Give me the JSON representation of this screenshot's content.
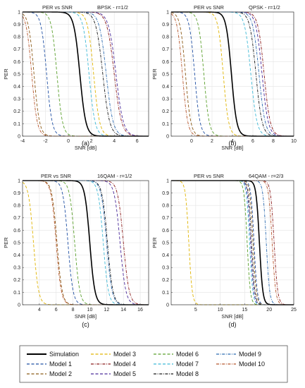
{
  "panels": [
    {
      "title": "PER vs SNR",
      "mode": "BPSK - r=1/2",
      "xlabel": "SNR [dB]",
      "ylabel": "PER",
      "caption": "(a)",
      "xlim": [
        -4,
        7
      ],
      "xticks": [
        -4,
        -2,
        0,
        2,
        4,
        6
      ],
      "curves": [
        {
          "series": "Simulation",
          "mid": 1.0,
          "w": 0.26
        },
        {
          "series": "Model 1",
          "mid": -1.9,
          "w": 0.24
        },
        {
          "series": "Model 2",
          "mid": -3.0,
          "w": 0.24
        },
        {
          "series": "Model 3",
          "mid": 2.2,
          "w": 0.26
        },
        {
          "series": "Model 4",
          "mid": 4.0,
          "w": 0.32
        },
        {
          "series": "Model 5",
          "mid": 4.15,
          "w": 0.32
        },
        {
          "series": "Model 6",
          "mid": -1.0,
          "w": 0.24
        },
        {
          "series": "Model 7",
          "mid": 1.8,
          "w": 0.26
        },
        {
          "series": "Model 8",
          "mid": 3.0,
          "w": 0.3
        },
        {
          "series": "Model 9",
          "mid": 3.3,
          "w": 0.3
        },
        {
          "series": "Model 10",
          "mid": -3.2,
          "w": 0.24
        }
      ]
    },
    {
      "title": "PER vs SNR",
      "mode": "QPSK - r=1/2",
      "xlabel": "SNR [dB]",
      "ylabel": "PER",
      "caption": "(b)",
      "xlim": [
        -2,
        10
      ],
      "xticks": [
        0,
        2,
        4,
        6,
        8,
        10
      ],
      "curves": [
        {
          "series": "Simulation",
          "mid": 3.9,
          "w": 0.26
        },
        {
          "series": "Model 1",
          "mid": 0.3,
          "w": 0.26
        },
        {
          "series": "Model 2",
          "mid": -0.6,
          "w": 0.26
        },
        {
          "series": "Model 3",
          "mid": 3.1,
          "w": 0.26
        },
        {
          "series": "Model 4",
          "mid": 7.1,
          "w": 0.3
        },
        {
          "series": "Model 5",
          "mid": 6.9,
          "w": 0.3
        },
        {
          "series": "Model 6",
          "mid": 1.2,
          "w": 0.26
        },
        {
          "series": "Model 7",
          "mid": 5.8,
          "w": 0.3
        },
        {
          "series": "Model 8",
          "mid": 6.3,
          "w": 0.3
        },
        {
          "series": "Model 9",
          "mid": 6.6,
          "w": 0.3
        },
        {
          "series": "Model 10",
          "mid": -0.9,
          "w": 0.26
        }
      ]
    },
    {
      "title": "PER vs SNR",
      "mode": "16QAM - r=1/2",
      "xlabel": "SNR [dB]",
      "ylabel": "PER",
      "caption": "(c)",
      "xlim": [
        2,
        17
      ],
      "xticks": [
        4,
        6,
        8,
        10,
        12,
        14,
        16
      ],
      "curves": [
        {
          "series": "Simulation",
          "mid": 10.0,
          "w": 0.3
        },
        {
          "series": "Model 1",
          "mid": 7.4,
          "w": 0.3
        },
        {
          "series": "Model 2",
          "mid": 6.1,
          "w": 0.3
        },
        {
          "series": "Model 3",
          "mid": 3.3,
          "w": 0.3
        },
        {
          "series": "Model 4",
          "mid": 14.0,
          "w": 0.34
        },
        {
          "series": "Model 5",
          "mid": 13.6,
          "w": 0.34
        },
        {
          "series": "Model 6",
          "mid": 8.2,
          "w": 0.3
        },
        {
          "series": "Model 7",
          "mid": 11.6,
          "w": 0.3
        },
        {
          "series": "Model 8",
          "mid": 12.1,
          "w": 0.32
        },
        {
          "series": "Model 9",
          "mid": 12.0,
          "w": 0.32
        },
        {
          "series": "Model 10",
          "mid": 6.0,
          "w": 0.3
        }
      ]
    },
    {
      "title": "PER vs SNR",
      "mode": "64QAM - r=2/3",
      "xlabel": "SNR [dB]",
      "ylabel": "PER",
      "caption": "(d)",
      "xlim": [
        0,
        25
      ],
      "xticks": [
        5,
        10,
        15,
        20,
        25
      ],
      "curves": [
        {
          "series": "Simulation",
          "mid": 18.0,
          "w": 0.34
        },
        {
          "series": "Model 1",
          "mid": 16.9,
          "w": 0.32
        },
        {
          "series": "Model 2",
          "mid": 16.7,
          "w": 0.32
        },
        {
          "series": "Model 3",
          "mid": 3.6,
          "w": 0.34
        },
        {
          "series": "Model 4",
          "mid": 21.0,
          "w": 0.36
        },
        {
          "series": "Model 5",
          "mid": 16.2,
          "w": 0.32
        },
        {
          "series": "Model 6",
          "mid": 15.5,
          "w": 0.32
        },
        {
          "series": "Model 7",
          "mid": 16.0,
          "w": 0.32
        },
        {
          "series": "Model 8",
          "mid": 16.4,
          "w": 0.32
        },
        {
          "series": "Model 9",
          "mid": 19.4,
          "w": 0.34
        },
        {
          "series": "Model 10",
          "mid": 20.6,
          "w": 0.36
        }
      ]
    }
  ],
  "series_styles": [
    {
      "name": "Simulation",
      "color": "#000000",
      "dash": "solid",
      "bold": true
    },
    {
      "name": "Model 1",
      "color": "#1f4fa3",
      "dash": "dash"
    },
    {
      "name": "Model 2",
      "color": "#8b5a16",
      "dash": "dash"
    },
    {
      "name": "Model 3",
      "color": "#e0b400",
      "dash": "dash"
    },
    {
      "name": "Model 4",
      "color": "#8b1a1a",
      "dash": "dashdot"
    },
    {
      "name": "Model 5",
      "color": "#4a2a9a",
      "dash": "dash"
    },
    {
      "name": "Model 6",
      "color": "#5aa02c",
      "dash": "dash"
    },
    {
      "name": "Model 7",
      "color": "#3fb9d6",
      "dash": "dash"
    },
    {
      "name": "Model 8",
      "color": "#1a1a1a",
      "dash": "dashdot"
    },
    {
      "name": "Model 9",
      "color": "#2a6ab0",
      "dash": "dashdot"
    },
    {
      "name": "Model 10",
      "color": "#b5532a",
      "dash": "dashdot"
    }
  ],
  "legend_order": [
    "Simulation",
    "Model 1",
    "Model 2",
    "Model 3",
    "Model 4",
    "Model 5",
    "Model 6",
    "Model 7",
    "Model 8",
    "Model 9",
    "Model 10"
  ],
  "chart_data": [
    {
      "type": "line",
      "title": "PER vs SNR BPSK - r=1/2",
      "xlabel": "SNR [dB]",
      "ylabel": "PER",
      "xlim": [
        -4,
        7
      ],
      "ylim": [
        0,
        1
      ],
      "xticks": [
        -4,
        -2,
        0,
        2,
        4,
        6
      ],
      "yticks": [
        0,
        0.1,
        0.2,
        0.3,
        0.4,
        0.5,
        0.6,
        0.7,
        0.8,
        0.9,
        1
      ],
      "grid": true,
      "series_PER_0.5_crossing_dB": {
        "Simulation": 1.0,
        "Model 1": -1.9,
        "Model 2": -3.0,
        "Model 3": 2.2,
        "Model 4": 4.0,
        "Model 5": 4.15,
        "Model 6": -1.0,
        "Model 7": 1.8,
        "Model 8": 3.0,
        "Model 9": 3.3,
        "Model 10": -3.2
      }
    },
    {
      "type": "line",
      "title": "PER vs SNR QPSK - r=1/2",
      "xlabel": "SNR [dB]",
      "ylabel": "PER",
      "xlim": [
        -2,
        10
      ],
      "ylim": [
        0,
        1
      ],
      "xticks": [
        0,
        2,
        4,
        6,
        8,
        10
      ],
      "yticks": [
        0,
        0.1,
        0.2,
        0.3,
        0.4,
        0.5,
        0.6,
        0.7,
        0.8,
        0.9,
        1
      ],
      "grid": true,
      "series_PER_0.5_crossing_dB": {
        "Simulation": 3.9,
        "Model 1": 0.3,
        "Model 2": -0.6,
        "Model 3": 3.1,
        "Model 4": 7.1,
        "Model 5": 6.9,
        "Model 6": 1.2,
        "Model 7": 5.8,
        "Model 8": 6.3,
        "Model 9": 6.6,
        "Model 10": -0.9
      }
    },
    {
      "type": "line",
      "title": "PER vs SNR 16QAM - r=1/2",
      "xlabel": "SNR [dB]",
      "ylabel": "PER",
      "xlim": [
        2,
        17
      ],
      "ylim": [
        0,
        1
      ],
      "xticks": [
        4,
        6,
        8,
        10,
        12,
        14,
        16
      ],
      "yticks": [
        0,
        0.1,
        0.2,
        0.3,
        0.4,
        0.5,
        0.6,
        0.7,
        0.8,
        0.9,
        1
      ],
      "grid": true,
      "series_PER_0.5_crossing_dB": {
        "Simulation": 10.0,
        "Model 1": 7.4,
        "Model 2": 6.1,
        "Model 3": 3.3,
        "Model 4": 14.0,
        "Model 5": 13.6,
        "Model 6": 8.2,
        "Model 7": 11.6,
        "Model 8": 12.1,
        "Model 9": 12.0,
        "Model 10": 6.0
      }
    },
    {
      "type": "line",
      "title": "PER vs SNR 64QAM - r=2/3",
      "xlabel": "SNR [dB]",
      "ylabel": "PER",
      "xlim": [
        0,
        25
      ],
      "ylim": [
        0,
        1
      ],
      "xticks": [
        5,
        10,
        15,
        20,
        25
      ],
      "yticks": [
        0,
        0.1,
        0.2,
        0.3,
        0.4,
        0.5,
        0.6,
        0.7,
        0.8,
        0.9,
        1
      ],
      "grid": true,
      "series_PER_0.5_crossing_dB": {
        "Simulation": 18.0,
        "Model 1": 16.9,
        "Model 2": 16.7,
        "Model 3": 3.6,
        "Model 4": 21.0,
        "Model 5": 16.2,
        "Model 6": 15.5,
        "Model 7": 16.0,
        "Model 8": 16.4,
        "Model 9": 19.4,
        "Model 10": 20.6
      }
    }
  ]
}
